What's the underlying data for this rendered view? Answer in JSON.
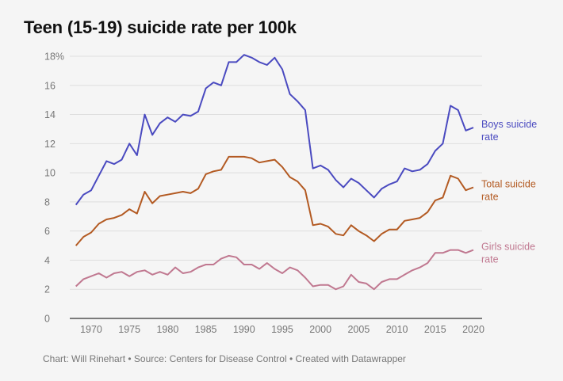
{
  "chart_data": {
    "type": "line",
    "title": "Teen (15-19) suicide rate per 100k",
    "footer": "Chart: Will Rinehart • Source: Centers for Disease Control • Created with Datawrapper",
    "x_start": 1968,
    "x_end": 2020,
    "xlim": [
      1968,
      2020
    ],
    "ylim": [
      0,
      18
    ],
    "grid": true,
    "x_ticks": [
      1970,
      1975,
      1980,
      1985,
      1990,
      1995,
      2000,
      2005,
      2010,
      2015,
      2020
    ],
    "y_ticks": [
      {
        "v": 0,
        "label": "0"
      },
      {
        "v": 2,
        "label": "2"
      },
      {
        "v": 4,
        "label": "4"
      },
      {
        "v": 6,
        "label": "6"
      },
      {
        "v": 8,
        "label": "8"
      },
      {
        "v": 10,
        "label": "10"
      },
      {
        "v": 12,
        "label": "12"
      },
      {
        "v": 14,
        "label": "14"
      },
      {
        "v": 16,
        "label": "16"
      },
      {
        "v": 18,
        "label": "18%"
      }
    ],
    "legend": "inline-right",
    "series": [
      {
        "name": "Boys suicide rate",
        "label_lines": [
          "Boys suicide",
          "rate"
        ],
        "color": "#4a4ac0",
        "values": [
          7.8,
          8.5,
          8.8,
          9.8,
          10.8,
          10.6,
          10.9,
          12.0,
          11.2,
          14.0,
          12.6,
          13.4,
          13.8,
          13.5,
          14.0,
          13.9,
          14.2,
          15.8,
          16.2,
          16.0,
          17.6,
          17.6,
          18.1,
          17.9,
          17.6,
          17.4,
          17.9,
          17.1,
          15.4,
          14.9,
          14.3,
          10.3,
          10.5,
          10.2,
          9.5,
          9.0,
          9.6,
          9.3,
          8.8,
          8.3,
          8.9,
          9.2,
          9.4,
          10.3,
          10.1,
          10.2,
          10.6,
          11.5,
          12.0,
          14.6,
          14.3,
          12.9,
          13.1
        ]
      },
      {
        "name": "Total suicide rate",
        "label_lines": [
          "Total suicide",
          "rate"
        ],
        "color": "#b35a22",
        "values": [
          5.0,
          5.6,
          5.9,
          6.5,
          6.8,
          6.9,
          7.1,
          7.5,
          7.2,
          8.7,
          7.9,
          8.4,
          8.5,
          8.6,
          8.7,
          8.6,
          8.9,
          9.9,
          10.1,
          10.2,
          11.1,
          11.1,
          11.1,
          11.0,
          10.7,
          10.8,
          10.9,
          10.4,
          9.7,
          9.4,
          8.8,
          6.4,
          6.5,
          6.3,
          5.8,
          5.7,
          6.4,
          6.0,
          5.7,
          5.3,
          5.8,
          6.1,
          6.1,
          6.7,
          6.8,
          6.9,
          7.3,
          8.1,
          8.3,
          9.8,
          9.6,
          8.8,
          9.0
        ]
      },
      {
        "name": "Girls suicide rate",
        "label_lines": [
          "Girls suicide",
          "rate"
        ],
        "color": "#c07890",
        "values": [
          2.2,
          2.7,
          2.9,
          3.1,
          2.8,
          3.1,
          3.2,
          2.9,
          3.2,
          3.3,
          3.0,
          3.2,
          3.0,
          3.5,
          3.1,
          3.2,
          3.5,
          3.7,
          3.7,
          4.1,
          4.3,
          4.2,
          3.7,
          3.7,
          3.4,
          3.8,
          3.4,
          3.1,
          3.5,
          3.3,
          2.8,
          2.2,
          2.3,
          2.3,
          2.0,
          2.2,
          3.0,
          2.5,
          2.4,
          2.0,
          2.5,
          2.7,
          2.7,
          3.0,
          3.3,
          3.5,
          3.8,
          4.5,
          4.5,
          4.7,
          4.7,
          4.5,
          4.7
        ]
      }
    ]
  }
}
